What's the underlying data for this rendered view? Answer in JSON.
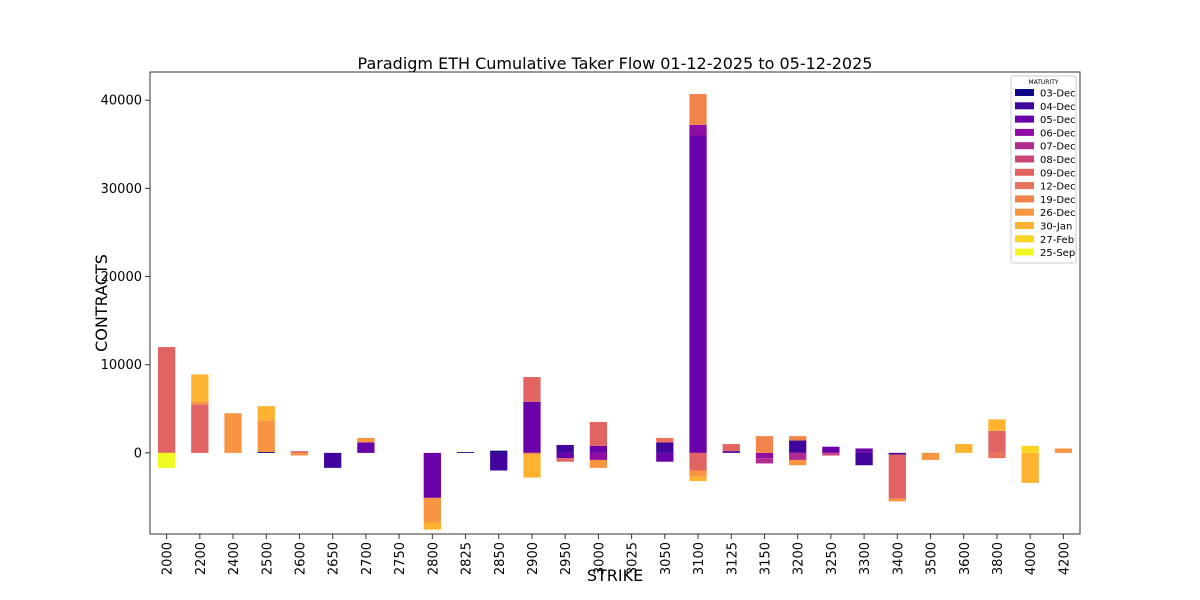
{
  "chart_data": {
    "type": "bar",
    "stacked": true,
    "title": "Paradigm ETH Cumulative Taker Flow 01-12-2025 to 05-12-2025",
    "xlabel": "STRIKE",
    "ylabel": "CONTRACTS",
    "ylim": [
      -9200,
      43200
    ],
    "yticks": [
      0,
      10000,
      20000,
      30000,
      40000
    ],
    "grid": false,
    "legend": {
      "title": "MATURITY",
      "placement": "top-right"
    },
    "categories": [
      "2000",
      "2200",
      "2400",
      "2500",
      "2600",
      "2650",
      "2700",
      "2750",
      "2800",
      "2825",
      "2850",
      "2900",
      "2950",
      "3000",
      "3025",
      "3050",
      "3100",
      "3125",
      "3150",
      "3200",
      "3250",
      "3300",
      "3400",
      "3500",
      "3600",
      "3800",
      "4000",
      "4200"
    ],
    "series": [
      {
        "name": "03-Dec",
        "color": "#0d0887",
        "values": [
          0,
          0,
          0,
          100,
          0,
          0,
          0,
          0,
          0,
          100,
          250,
          0,
          0,
          0,
          0,
          0,
          0,
          0,
          0,
          0,
          0,
          0,
          0,
          0,
          0,
          0,
          0,
          0
        ]
      },
      {
        "name": "04-Dec",
        "color": "#41049d",
        "values": [
          0,
          0,
          0,
          0,
          0,
          -1700,
          0,
          0,
          0,
          0,
          -2000,
          0,
          900,
          0,
          0,
          1200,
          0,
          200,
          0,
          1400,
          0,
          -1400,
          -200,
          0,
          0,
          0,
          0,
          0
        ]
      },
      {
        "name": "05-Dec",
        "color": "#6a00a8",
        "values": [
          0,
          0,
          0,
          0,
          0,
          0,
          1200,
          0,
          -5100,
          0,
          0,
          5800,
          -600,
          800,
          0,
          -1000,
          36000,
          0,
          0,
          0,
          700,
          500,
          0,
          0,
          0,
          0,
          0,
          0
        ]
      },
      {
        "name": "06-Dec",
        "color": "#8f0da4",
        "values": [
          0,
          0,
          0,
          0,
          0,
          0,
          0,
          0,
          0,
          0,
          0,
          0,
          0,
          -800,
          0,
          0,
          1200,
          0,
          -600,
          0,
          0,
          0,
          0,
          0,
          0,
          0,
          0,
          0
        ]
      },
      {
        "name": "07-Dec",
        "color": "#b12a90",
        "values": [
          0,
          0,
          0,
          0,
          0,
          0,
          0,
          0,
          0,
          0,
          0,
          0,
          0,
          0,
          0,
          0,
          0,
          0,
          -600,
          -800,
          0,
          0,
          0,
          0,
          0,
          0,
          0,
          0
        ]
      },
      {
        "name": "08-Dec",
        "color": "#cc4778",
        "values": [
          0,
          0,
          0,
          0,
          0,
          0,
          0,
          0,
          0,
          0,
          0,
          0,
          0,
          0,
          0,
          0,
          0,
          0,
          0,
          0,
          -300,
          0,
          0,
          0,
          0,
          0,
          0,
          0
        ]
      },
      {
        "name": "09-Dec",
        "color": "#e16462",
        "values": [
          12000,
          5500,
          0,
          0,
          200,
          0,
          0,
          0,
          0,
          0,
          0,
          2800,
          -400,
          2700,
          0,
          0,
          -2000,
          800,
          0,
          0,
          0,
          0,
          -5000,
          0,
          0,
          2500,
          0,
          0
        ]
      },
      {
        "name": "12-Dec",
        "color": "#e8725c",
        "values": [
          0,
          0,
          0,
          0,
          0,
          0,
          0,
          0,
          0,
          0,
          0,
          0,
          0,
          0,
          0,
          500,
          0,
          0,
          0,
          0,
          0,
          0,
          0,
          0,
          0,
          -600,
          0,
          0
        ]
      },
      {
        "name": "19-Dec",
        "color": "#f2844b",
        "values": [
          0,
          0,
          0,
          0,
          0,
          0,
          0,
          0,
          0,
          0,
          0,
          0,
          0,
          0,
          0,
          0,
          3500,
          0,
          1900,
          500,
          0,
          0,
          0,
          0,
          0,
          0,
          0,
          0
        ]
      },
      {
        "name": "26-Dec",
        "color": "#f89540",
        "values": [
          0,
          300,
          4500,
          3600,
          -300,
          0,
          500,
          0,
          -2800,
          0,
          0,
          -200,
          0,
          -900,
          0,
          0,
          -700,
          0,
          0,
          -600,
          0,
          0,
          -300,
          -800,
          0,
          0,
          0,
          500
        ]
      },
      {
        "name": "30-Jan",
        "color": "#fdb32f",
        "values": [
          0,
          3100,
          0,
          1600,
          0,
          0,
          0,
          0,
          -800,
          0,
          0,
          -2600,
          0,
          0,
          0,
          0,
          -500,
          0,
          0,
          0,
          0,
          0,
          0,
          0,
          1000,
          1300,
          -3400,
          0
        ]
      },
      {
        "name": "27-Feb",
        "color": "#fbd524",
        "values": [
          0,
          0,
          0,
          0,
          0,
          0,
          0,
          0,
          0,
          0,
          0,
          0,
          0,
          0,
          0,
          0,
          0,
          0,
          0,
          0,
          0,
          0,
          0,
          0,
          0,
          0,
          800,
          0
        ]
      },
      {
        "name": "25-Sep",
        "color": "#f0f921",
        "values": [
          -1700,
          0,
          0,
          0,
          0,
          0,
          0,
          0,
          0,
          0,
          0,
          0,
          0,
          0,
          0,
          0,
          0,
          0,
          0,
          0,
          0,
          0,
          0,
          0,
          0,
          0,
          0,
          0
        ]
      }
    ]
  }
}
